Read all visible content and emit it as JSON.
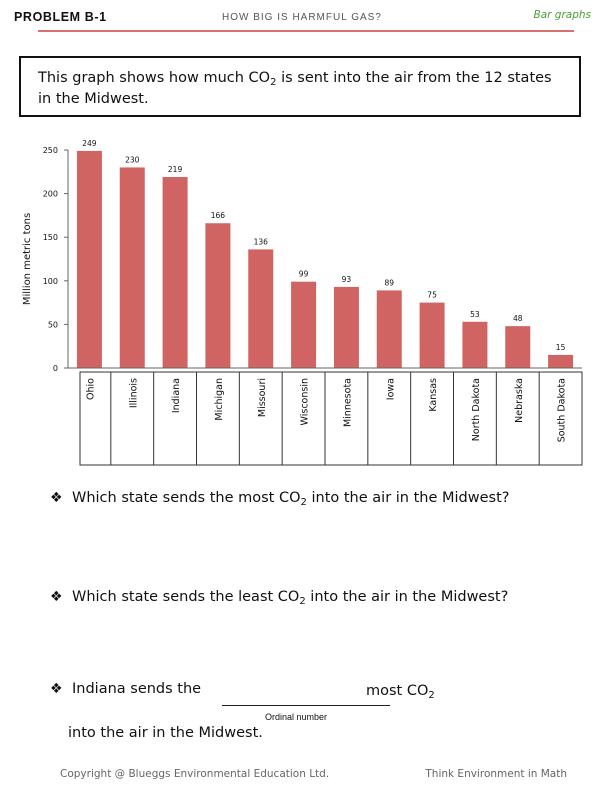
{
  "header": {
    "problem": "PROBLEM B-1",
    "title": "HOW BIG IS HARMFUL GAS?",
    "topic": "Bar graphs",
    "rule_color": "#d9706f",
    "topic_color": "#4a9c3a"
  },
  "intro": {
    "before": "This graph shows how much CO",
    "sub": "2",
    "after": " is sent into the air from the 12 states in the Midwest."
  },
  "chart_data": {
    "type": "bar",
    "categories": [
      "Ohio",
      "Illinois",
      "Indiana",
      "Michigan",
      "Missouri",
      "Wisconsin",
      "Minnesota",
      "Iowa",
      "Kansas",
      "North Dakota",
      "Nebraska",
      "South Dakota"
    ],
    "values": [
      249,
      230,
      219,
      166,
      136,
      99,
      93,
      89,
      75,
      53,
      48,
      15
    ],
    "data_labels": [
      "249",
      "230",
      "219",
      "166",
      "136",
      "99",
      "93",
      "89",
      "75",
      "53",
      "48",
      "15"
    ],
    "ylabel": "Million metric tons",
    "xlabel": "",
    "ylim": [
      0,
      250
    ],
    "yticks": [
      0,
      50,
      100,
      150,
      200,
      250
    ],
    "ytick_labels": [
      "0",
      "50",
      "100",
      "150",
      "200",
      "250"
    ],
    "bar_color": "#d06462",
    "grid": false,
    "legend": "none"
  },
  "questions": {
    "bullet": "❖",
    "q1": {
      "before": "Which state sends the most CO",
      "sub": "2",
      "after": " into the air in the Midwest?"
    },
    "q2": {
      "before": "Which state sends the least CO",
      "sub": "2",
      "after": " into the air in the Midwest?"
    },
    "q3": {
      "lead": "Indiana sends the",
      "tail_before": "most CO",
      "tail_sub": "2",
      "continuation": "into the air in the Midwest.",
      "blank_caption": "Ordinal number"
    }
  },
  "footer": {
    "copyright": "Copyright @ Blueggs Environmental Education Ltd.",
    "series": "Think Environment in Math"
  }
}
